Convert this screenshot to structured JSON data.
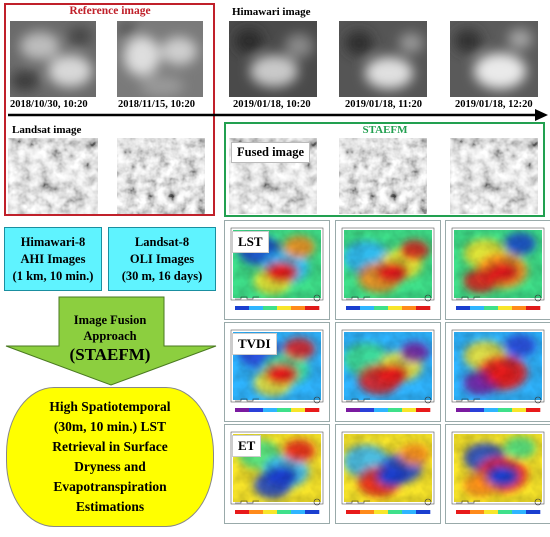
{
  "reference": {
    "title": "Reference image",
    "dates": [
      "2018/10/30, 10:20",
      "2018/11/15, 10:20"
    ],
    "landsat_label": "Landsat image"
  },
  "himawari": {
    "title": "Himawari image",
    "dates": [
      "2019/01/18, 10:20",
      "2019/01/18, 11:20",
      "2019/01/18, 12:20"
    ]
  },
  "staefm": {
    "title": "STAEFM",
    "fused_label": "Fused image"
  },
  "inputs": {
    "himawari_box": [
      "Himawari-8",
      "AHI Images",
      "(1 km, 10 min.)"
    ],
    "landsat_box": [
      "Landsat-8",
      "OLI Images",
      "(30 m, 16 days)"
    ]
  },
  "arrow": {
    "lines": [
      "Image Fusion",
      "Approach",
      "(STAEFM)"
    ]
  },
  "result": {
    "lines": [
      "High Spatiotemporal",
      "(30m, 10 min.) LST",
      "Retrieval in Surface",
      "Dryness and",
      "Evapotranspiration",
      "Estimations"
    ]
  },
  "maps": {
    "rows": [
      {
        "label": "LST",
        "colormap": "rainbow"
      },
      {
        "label": "TVDI",
        "colormap": "rainbow-dry"
      },
      {
        "label": "ET",
        "colormap": "et"
      }
    ]
  },
  "colors": {
    "reference_border": "#c0202a",
    "reference_title": "#c0202a",
    "staefm_border": "#22a050",
    "staefm_title": "#22a050",
    "cyan_box": "#5ff3ff",
    "arrow_fill": "#8ccf3f",
    "result_fill": "#ffff00",
    "timeline": "#000000"
  }
}
